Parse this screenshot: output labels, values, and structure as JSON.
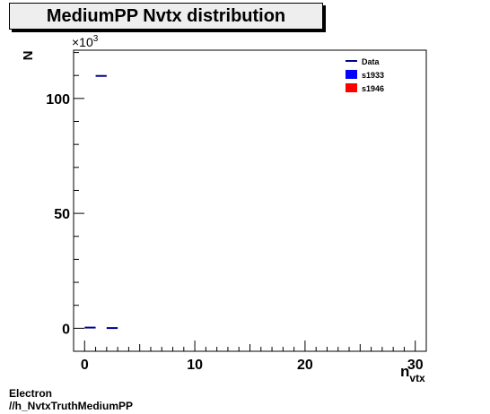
{
  "chart_data": {
    "type": "histogram",
    "title": "MediumPP Nvtx distribution",
    "xlabel_main": "n",
    "xlabel_sub": "vtx",
    "ylabel": "N",
    "y_multiplier": "×10",
    "y_multiplier_exp": "3",
    "xlim": [
      -1,
      31
    ],
    "ylim": [
      -10,
      121
    ],
    "x_ticks": [
      0,
      10,
      20,
      30
    ],
    "y_ticks": [
      0,
      50,
      100
    ],
    "legend_position": "top-right",
    "series": [
      {
        "name": "Data",
        "color": "#00008b",
        "style": "line",
        "bins": [
          {
            "x0": 0,
            "x1": 1,
            "y": 0.3
          },
          {
            "x0": 1,
            "x1": 2,
            "y": 109.8
          },
          {
            "x0": 2,
            "x1": 3,
            "y": 0.1
          }
        ]
      },
      {
        "name": "s1933",
        "color": "#0000ff",
        "style": "fill",
        "bins": []
      },
      {
        "name": "s1946",
        "color": "#ff0000",
        "style": "fill",
        "bins": []
      }
    ]
  },
  "footer": {
    "line1": "Electron",
    "line2": "//h_NvtxTruthMediumPP"
  }
}
